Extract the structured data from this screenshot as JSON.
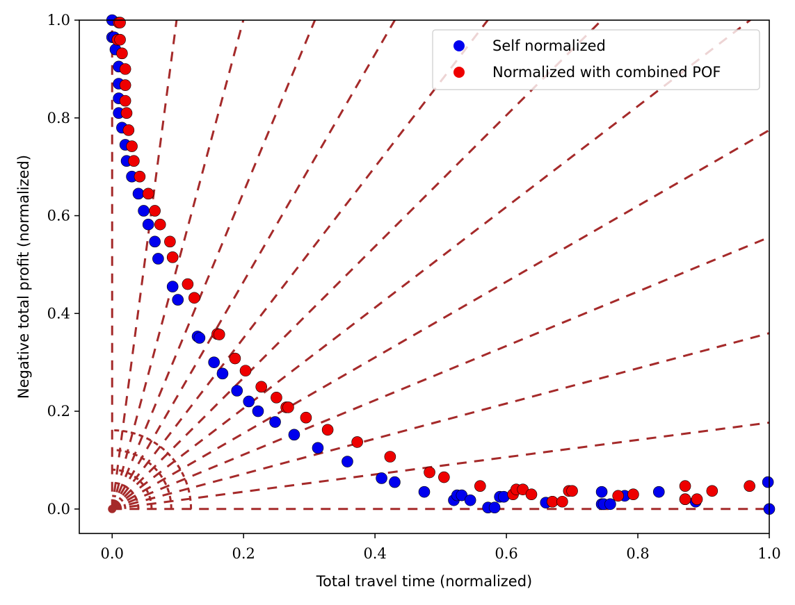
{
  "chart_data": {
    "type": "scatter",
    "xlabel": "Total travel time (normalized)",
    "ylabel": "Negative total profit (normalized)",
    "xlim": [
      -0.05,
      1.0
    ],
    "ylim": [
      -0.05,
      1.0
    ],
    "x_ticks": [
      0.0,
      0.2,
      0.4,
      0.6,
      0.8,
      1.0
    ],
    "y_ticks": [
      0.0,
      0.2,
      0.4,
      0.6,
      0.8,
      1.0
    ],
    "x_tick_labels": [
      "0.0",
      "0.2",
      "0.4",
      "0.6",
      "0.8",
      "1.0"
    ],
    "y_tick_labels": [
      "0.0",
      "0.2",
      "0.4",
      "0.6",
      "0.8",
      "1.0"
    ],
    "grid": false,
    "legend_position": "top-right",
    "reference_lines": {
      "style": "dashed",
      "color": "#a52a2a",
      "description": "radial reference lines from origin and concentric quarter arcs"
    },
    "series": [
      {
        "name": "Self normalized",
        "color": "#0000ee",
        "points": [
          [
            0.0,
            1.0
          ],
          [
            0.0,
            0.965
          ],
          [
            0.003,
            0.965
          ],
          [
            0.005,
            0.94
          ],
          [
            0.01,
            0.905
          ],
          [
            0.01,
            0.87
          ],
          [
            0.01,
            0.84
          ],
          [
            0.01,
            0.81
          ],
          [
            0.015,
            0.78
          ],
          [
            0.02,
            0.745
          ],
          [
            0.022,
            0.712
          ],
          [
            0.03,
            0.68
          ],
          [
            0.04,
            0.645
          ],
          [
            0.048,
            0.61
          ],
          [
            0.055,
            0.582
          ],
          [
            0.065,
            0.547
          ],
          [
            0.07,
            0.512
          ],
          [
            0.092,
            0.455
          ],
          [
            0.1,
            0.428
          ],
          [
            0.13,
            0.353
          ],
          [
            0.133,
            0.35
          ],
          [
            0.155,
            0.3
          ],
          [
            0.168,
            0.277
          ],
          [
            0.19,
            0.242
          ],
          [
            0.208,
            0.22
          ],
          [
            0.222,
            0.2
          ],
          [
            0.248,
            0.178
          ],
          [
            0.277,
            0.152
          ],
          [
            0.313,
            0.125
          ],
          [
            0.358,
            0.097
          ],
          [
            0.41,
            0.063
          ],
          [
            0.43,
            0.055
          ],
          [
            0.475,
            0.035
          ],
          [
            0.52,
            0.018
          ],
          [
            0.525,
            0.028
          ],
          [
            0.532,
            0.028
          ],
          [
            0.545,
            0.018
          ],
          [
            0.572,
            0.003
          ],
          [
            0.582,
            0.003
          ],
          [
            0.59,
            0.025
          ],
          [
            0.596,
            0.025
          ],
          [
            0.66,
            0.013
          ],
          [
            0.67,
            0.015
          ],
          [
            0.745,
            0.035
          ],
          [
            0.745,
            0.01
          ],
          [
            0.748,
            0.01
          ],
          [
            0.758,
            0.01
          ],
          [
            0.78,
            0.027
          ],
          [
            0.832,
            0.035
          ],
          [
            0.872,
            0.02
          ],
          [
            0.888,
            0.015
          ],
          [
            0.998,
            0.055
          ],
          [
            1.0,
            0.0
          ]
        ]
      },
      {
        "name": "Normalized with combined POF",
        "color": "#ee0000",
        "points": [
          [
            0.01,
            0.995
          ],
          [
            0.012,
            0.995
          ],
          [
            0.008,
            0.96
          ],
          [
            0.012,
            0.96
          ],
          [
            0.015,
            0.932
          ],
          [
            0.02,
            0.9
          ],
          [
            0.02,
            0.867
          ],
          [
            0.02,
            0.835
          ],
          [
            0.022,
            0.81
          ],
          [
            0.025,
            0.775
          ],
          [
            0.03,
            0.742
          ],
          [
            0.033,
            0.712
          ],
          [
            0.042,
            0.68
          ],
          [
            0.055,
            0.645
          ],
          [
            0.065,
            0.61
          ],
          [
            0.073,
            0.582
          ],
          [
            0.088,
            0.547
          ],
          [
            0.092,
            0.515
          ],
          [
            0.115,
            0.46
          ],
          [
            0.125,
            0.432
          ],
          [
            0.16,
            0.358
          ],
          [
            0.163,
            0.357
          ],
          [
            0.187,
            0.308
          ],
          [
            0.203,
            0.283
          ],
          [
            0.227,
            0.25
          ],
          [
            0.25,
            0.228
          ],
          [
            0.265,
            0.208
          ],
          [
            0.268,
            0.208
          ],
          [
            0.295,
            0.187
          ],
          [
            0.328,
            0.162
          ],
          [
            0.373,
            0.137
          ],
          [
            0.423,
            0.107
          ],
          [
            0.483,
            0.075
          ],
          [
            0.505,
            0.065
          ],
          [
            0.56,
            0.047
          ],
          [
            0.61,
            0.03
          ],
          [
            0.615,
            0.04
          ],
          [
            0.625,
            0.04
          ],
          [
            0.638,
            0.03
          ],
          [
            0.67,
            0.015
          ],
          [
            0.685,
            0.015
          ],
          [
            0.695,
            0.037
          ],
          [
            0.7,
            0.037
          ],
          [
            0.77,
            0.027
          ],
          [
            0.793,
            0.03
          ],
          [
            0.872,
            0.047
          ],
          [
            0.872,
            0.02
          ],
          [
            0.89,
            0.02
          ],
          [
            0.913,
            0.037
          ],
          [
            0.97,
            0.047
          ]
        ]
      }
    ]
  }
}
